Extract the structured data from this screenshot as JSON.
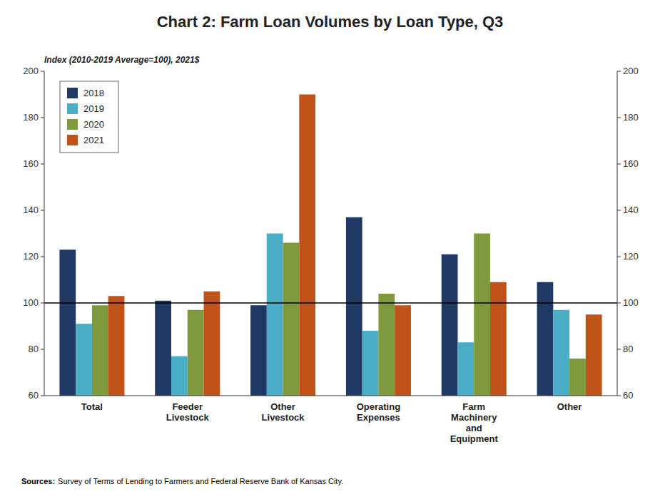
{
  "chart_data": {
    "type": "bar",
    "title": "Chart 2: Farm Loan Volumes by Loan Type, Q3",
    "ylabel": "Index (2010-2019 Average=100), 2021$",
    "annotations": [
      "Sources:",
      "Survey of Terms of Lending to Farmers and Federal Reserve Bank of Kansas City."
    ],
    "categories": [
      "Total",
      "Feeder\nLivestock",
      "Other\nLivestock",
      "Operating\nExpenses",
      "Farm\nMachinery\nand\nEquipment",
      "Other"
    ],
    "series": [
      {
        "name": "2018",
        "color": "#1F3864",
        "values": [
          123,
          101,
          99,
          137,
          121,
          109
        ]
      },
      {
        "name": "2019",
        "color": "#4BACC6",
        "values": [
          91,
          77,
          130,
          88,
          83,
          97
        ]
      },
      {
        "name": "2020",
        "color": "#7F9A3E",
        "values": [
          99,
          97,
          126,
          104,
          130,
          76
        ]
      },
      {
        "name": "2021",
        "color": "#C0531A",
        "values": [
          103,
          105,
          190,
          99,
          109,
          95
        ]
      }
    ],
    "baseline": 100,
    "ylim": [
      60,
      200
    ],
    "yticks": [
      60,
      80,
      100,
      120,
      140,
      160,
      180,
      200
    ],
    "y2lim": [
      60,
      200
    ],
    "y2ticks": [
      60,
      80,
      100,
      120,
      140,
      160,
      180,
      200
    ],
    "grid": false,
    "legend": "upper left"
  }
}
